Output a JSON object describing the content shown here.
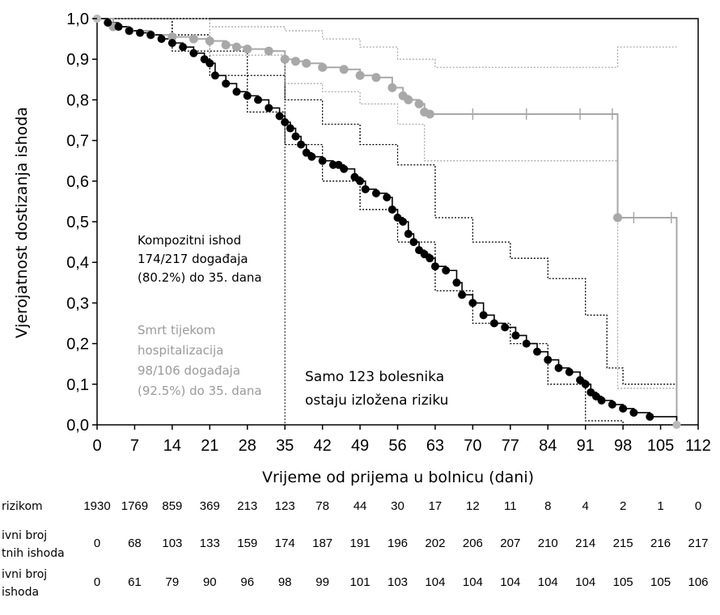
{
  "chart_data": {
    "type": "line",
    "subtype": "kaplan-meier cumulative incidence",
    "title": "",
    "xlabel": "Vrijeme od prijema u bolnicu (dani)",
    "ylabel": "Vjerojatnost dostizanja ishoda",
    "xlim": [
      0,
      112
    ],
    "ylim": [
      0,
      1.0
    ],
    "xticks": [
      "0",
      "7",
      "14",
      "21",
      "28",
      "35",
      "42",
      "49",
      "56",
      "63",
      "70",
      "77",
      "84",
      "91",
      "98",
      "105",
      "112"
    ],
    "yticks": [
      "0,0",
      "0,1",
      "0,2",
      "0,3",
      "0,4",
      "0,5",
      "0,6",
      "0,7",
      "0,8",
      "0,9",
      "1,0"
    ],
    "reference_line_x": 35,
    "series": [
      {
        "color": "#000000",
        "x": [
          0,
          2,
          4,
          6,
          8,
          10,
          12,
          14,
          16,
          18,
          20,
          21,
          22,
          24,
          26,
          28,
          30,
          32,
          34,
          35,
          36,
          37,
          38,
          39,
          40,
          42,
          44,
          45,
          46,
          48,
          49,
          50,
          52,
          54,
          55,
          56,
          57,
          58,
          59,
          60,
          61,
          62,
          63,
          65,
          67,
          68,
          70,
          72,
          74,
          76,
          78,
          80,
          82,
          84,
          86,
          88,
          90,
          91,
          92,
          93,
          94,
          96,
          98,
          100,
          103,
          108
        ],
        "y": [
          1.0,
          0.99,
          0.98,
          0.97,
          0.965,
          0.96,
          0.95,
          0.94,
          0.93,
          0.915,
          0.9,
          0.89,
          0.86,
          0.84,
          0.82,
          0.81,
          0.8,
          0.78,
          0.76,
          0.745,
          0.73,
          0.71,
          0.69,
          0.67,
          0.66,
          0.65,
          0.64,
          0.64,
          0.63,
          0.61,
          0.6,
          0.58,
          0.57,
          0.56,
          0.53,
          0.51,
          0.5,
          0.47,
          0.45,
          0.43,
          0.42,
          0.41,
          0.39,
          0.38,
          0.35,
          0.32,
          0.3,
          0.27,
          0.25,
          0.24,
          0.22,
          0.2,
          0.18,
          0.16,
          0.14,
          0.13,
          0.11,
          0.1,
          0.08,
          0.07,
          0.06,
          0.05,
          0.04,
          0.03,
          0.02,
          0.0
        ],
        "ci_upper": [
          [
            0,
            1.0
          ],
          [
            14,
            0.96
          ],
          [
            21,
            0.92
          ],
          [
            28,
            0.86
          ],
          [
            35,
            0.8
          ],
          [
            42,
            0.74
          ],
          [
            49,
            0.69
          ],
          [
            56,
            0.64
          ],
          [
            63,
            0.51
          ],
          [
            70,
            0.45
          ],
          [
            77,
            0.41
          ],
          [
            84,
            0.36
          ],
          [
            91,
            0.27
          ],
          [
            95,
            0.14
          ],
          [
            98,
            0.1
          ],
          [
            108,
            0.08
          ]
        ],
        "ci_lower": [
          [
            0,
            1.0
          ],
          [
            14,
            0.92
          ],
          [
            21,
            0.86
          ],
          [
            28,
            0.77
          ],
          [
            35,
            0.69
          ],
          [
            42,
            0.6
          ],
          [
            49,
            0.53
          ],
          [
            56,
            0.45
          ],
          [
            63,
            0.33
          ],
          [
            70,
            0.25
          ],
          [
            77,
            0.2
          ],
          [
            84,
            0.1
          ],
          [
            91,
            0.01
          ],
          [
            98,
            0.0
          ],
          [
            108,
            0.0
          ]
        ]
      },
      {
        "color": "#999999",
        "x": [
          0,
          3,
          6,
          10,
          14,
          18,
          21,
          24,
          26,
          28,
          32,
          35,
          37,
          39,
          42,
          46,
          49,
          52,
          55,
          57,
          58,
          60,
          61,
          62,
          70,
          80,
          90,
          96,
          97,
          100,
          107,
          108
        ],
        "y": [
          1.0,
          0.98,
          0.97,
          0.96,
          0.955,
          0.95,
          0.945,
          0.935,
          0.93,
          0.925,
          0.92,
          0.9,
          0.895,
          0.89,
          0.88,
          0.875,
          0.86,
          0.855,
          0.83,
          0.81,
          0.8,
          0.79,
          0.77,
          0.765,
          0.765,
          0.765,
          0.765,
          0.765,
          0.51,
          0.51,
          0.51,
          0.0
        ],
        "ci_upper": [
          [
            0,
            1.0
          ],
          [
            21,
            0.98
          ],
          [
            35,
            0.97
          ],
          [
            42,
            0.95
          ],
          [
            49,
            0.93
          ],
          [
            56,
            0.9
          ],
          [
            63,
            0.88
          ],
          [
            70,
            0.88
          ],
          [
            97,
            0.88
          ],
          [
            97,
            0.93
          ],
          [
            108,
            0.93
          ]
        ],
        "ci_lower": [
          [
            0,
            1.0
          ],
          [
            21,
            0.91
          ],
          [
            35,
            0.84
          ],
          [
            42,
            0.82
          ],
          [
            49,
            0.79
          ],
          [
            56,
            0.74
          ],
          [
            61,
            0.65
          ],
          [
            70,
            0.65
          ],
          [
            97,
            0.65
          ],
          [
            97,
            0.09
          ],
          [
            108,
            0.09
          ]
        ]
      }
    ],
    "annotations": {
      "composite": [
        "Kompozitni ishod",
        "174/217 događaja",
        "(80.2%) do 35. dana"
      ],
      "death": [
        "Smrt tijekom",
        "hospitalizacija",
        "98/106 događaja",
        "(92.5%) do 35. dana"
      ],
      "risk_note": [
        "Samo 123 bolesnika",
        "ostaju izložena riziku"
      ]
    },
    "table": {
      "rows": [
        {
          "label": [
            "rizikom"
          ],
          "values": [
            "1930",
            "1769",
            "859",
            "369",
            "213",
            "123",
            "78",
            "44",
            "30",
            "17",
            "12",
            "11",
            "8",
            "4",
            "2",
            "1",
            "0"
          ]
        },
        {
          "label": [
            "ivni broj",
            "tnih ishoda"
          ],
          "values": [
            "0",
            "68",
            "103",
            "133",
            "159",
            "174",
            "187",
            "191",
            "196",
            "202",
            "206",
            "207",
            "210",
            "214",
            "215",
            "216",
            "217"
          ]
        },
        {
          "label": [
            "ivni broj",
            "ishoda"
          ],
          "values": [
            "0",
            "61",
            "79",
            "90",
            "96",
            "98",
            "99",
            "101",
            "103",
            "104",
            "104",
            "104",
            "104",
            "104",
            "105",
            "105",
            "106"
          ]
        }
      ]
    }
  }
}
